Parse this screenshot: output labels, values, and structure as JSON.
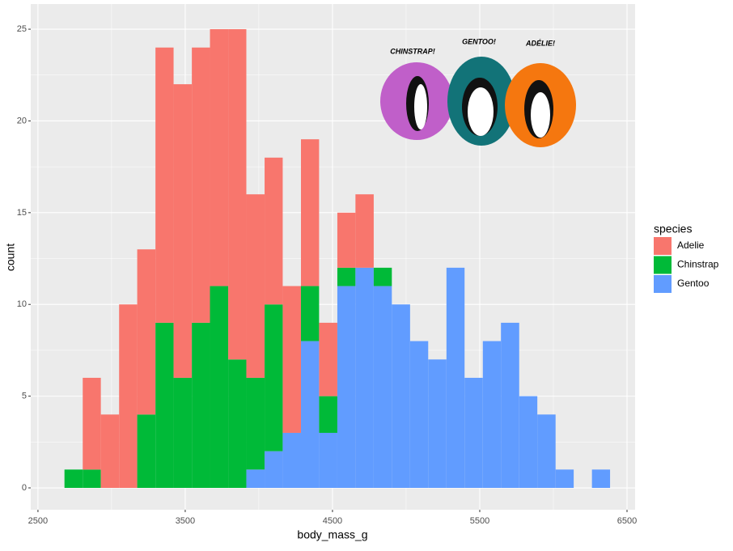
{
  "chart_data": {
    "type": "histogram",
    "x_label": "body_mass_g",
    "y_label": "count",
    "bins": [
      2680,
      2804,
      2927,
      3051,
      3174,
      3298,
      3421,
      3545,
      3668,
      3792,
      3915,
      4039,
      4162,
      4286,
      4409,
      4533,
      4656,
      4780,
      4903,
      5027,
      5150,
      5274,
      5397,
      5521,
      5644,
      5768,
      5891,
      6015,
      6138,
      6262,
      6385
    ],
    "series": [
      {
        "name": "Adelie",
        "color": "#f8766d",
        "values": [
          0,
          5,
          4,
          10,
          9,
          15,
          16,
          15,
          14,
          18,
          10,
          8,
          8,
          8,
          4,
          3,
          4,
          0,
          0,
          0,
          0,
          0,
          0,
          0,
          0,
          0,
          0,
          0,
          0,
          0
        ]
      },
      {
        "name": "Chinstrap",
        "color": "#00ba38",
        "values": [
          1,
          1,
          0,
          0,
          4,
          9,
          6,
          9,
          11,
          7,
          5,
          8,
          0,
          3,
          2,
          1,
          0,
          1,
          0,
          0,
          0,
          0,
          0,
          0,
          0,
          0,
          0,
          0,
          0,
          0
        ]
      },
      {
        "name": "Gentoo",
        "color": "#619cff",
        "values": [
          0,
          0,
          0,
          0,
          0,
          0,
          0,
          0,
          0,
          0,
          1,
          2,
          3,
          8,
          3,
          11,
          12,
          11,
          10,
          8,
          7,
          12,
          6,
          8,
          9,
          5,
          4,
          1,
          0,
          1
        ]
      }
    ],
    "legend_title": "species",
    "legend": "right",
    "xlim": [
      2451,
      6555
    ],
    "xticks": [
      2500,
      3500,
      4500,
      5500,
      6500
    ],
    "ylim": [
      -1.19,
      26.37
    ],
    "yticks": [
      0,
      5,
      10,
      15,
      20,
      25
    ],
    "grid": true,
    "image_labels": [
      "CHINSTRAP!",
      "GENTOO!",
      "ADÉLIE!"
    ]
  }
}
